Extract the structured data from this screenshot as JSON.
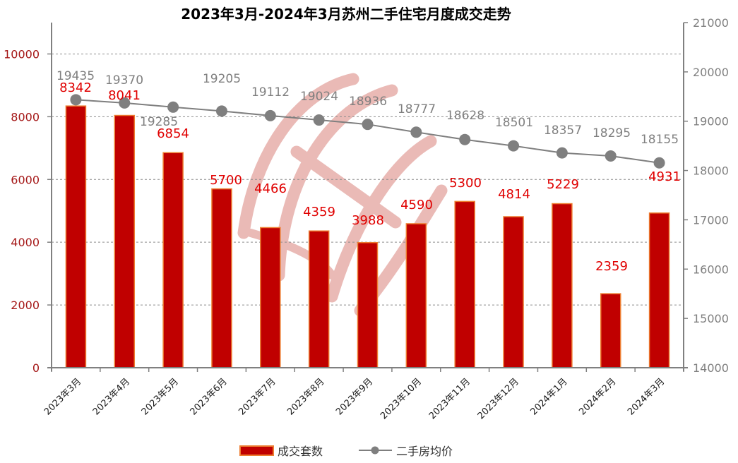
{
  "title": "2023年3月-2024年3月苏州二手住宅月度成交走势",
  "legend": {
    "bar_label": "成交套数",
    "line_label": "二手房均价"
  },
  "axes": {
    "left": {
      "ticks": [
        "0",
        "2000",
        "4000",
        "6000",
        "8000",
        "10000"
      ]
    },
    "right": {
      "ticks": [
        "14000",
        "15000",
        "16000",
        "17000",
        "18000",
        "19000",
        "20000",
        "21000"
      ]
    }
  },
  "colors": {
    "bar_fill": "#C00000",
    "bar_border": "#ED7D31",
    "line": "#7F7F7F",
    "bar_label": "#E00000",
    "left_axis_text": "#A51818",
    "watermark": "#E6B3B0"
  },
  "chart_data": {
    "type": "bar",
    "title": "2023年3月-2024年3月苏州二手住宅月度成交走势",
    "categories": [
      "2023年3月",
      "2023年4月",
      "2023年5月",
      "2023年6月",
      "2023年7月",
      "2023年8月",
      "2023年9月",
      "2023年10月",
      "2023年11月",
      "2023年12月",
      "2024年1月",
      "2024年2月",
      "2024年3月"
    ],
    "series": [
      {
        "name": "成交套数",
        "type": "bar",
        "axis": "left",
        "values": [
          8342,
          8041,
          6854,
          5700,
          4466,
          4359,
          3988,
          4590,
          5300,
          4814,
          5229,
          2359,
          4931
        ]
      },
      {
        "name": "二手房均价",
        "type": "line",
        "axis": "right",
        "values": [
          19435,
          19370,
          19285,
          19205,
          19112,
          19024,
          18936,
          18777,
          18628,
          18501,
          18357,
          18295,
          18155
        ]
      }
    ],
    "xlabel": "",
    "ylabel_left": "",
    "ylabel_right": "",
    "ylim_left": [
      0,
      11000
    ],
    "ylim_right": [
      14000,
      21000
    ],
    "left_ticks": [
      0,
      2000,
      4000,
      6000,
      8000,
      10000
    ],
    "right_ticks": [
      14000,
      15000,
      16000,
      17000,
      18000,
      19000,
      20000,
      21000
    ],
    "grid": "horizontal dashed",
    "legend_position": "bottom"
  }
}
